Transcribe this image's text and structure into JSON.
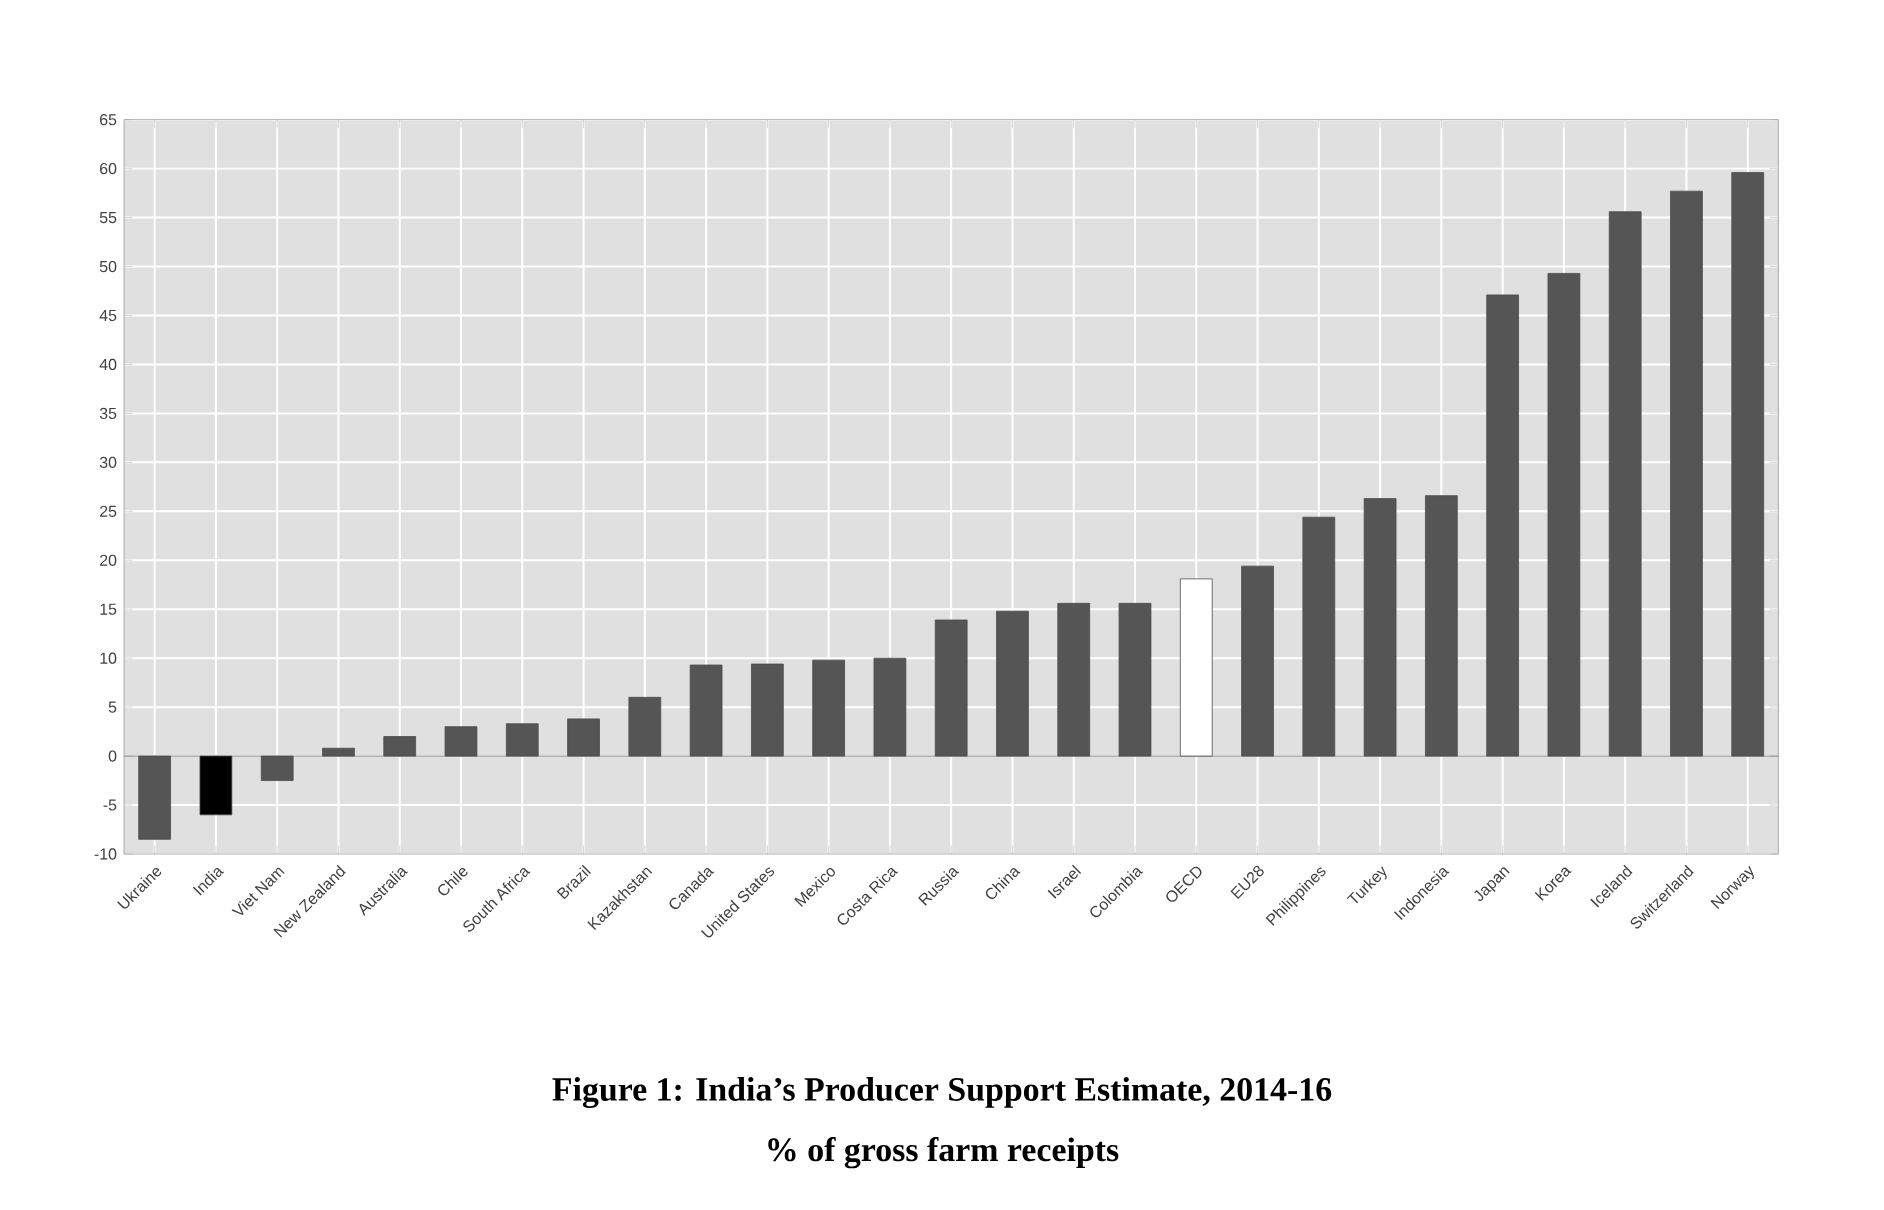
{
  "chart_data": {
    "type": "bar",
    "title": "Figure 1: India’s Producer Support Estimate, 2014-16",
    "subtitle": "% of gross farm receipts",
    "categories": [
      "Ukraine",
      "India",
      "Viet Nam",
      "New Zealand",
      "Australia",
      "Chile",
      "South Africa",
      "Brazil",
      "Kazakhstan",
      "Canada",
      "United States",
      "Mexico",
      "Costa Rica",
      "Russia",
      "China",
      "Israel",
      "Colombia",
      "OECD",
      "EU28",
      "Philippines",
      "Turkey",
      "Indonesia",
      "Japan",
      "Korea",
      "Iceland",
      "Switzerland",
      "Norway"
    ],
    "values": [
      -8.5,
      -6,
      -2.5,
      0.8,
      2,
      3,
      3.3,
      3.8,
      6,
      9.3,
      9.4,
      9.8,
      10,
      13.9,
      14.8,
      15.6,
      15.6,
      18.1,
      19.4,
      24.4,
      26.3,
      26.6,
      47.1,
      49.3,
      55.6,
      57.7,
      59.6
    ],
    "colors": [
      "#555555",
      "#000000",
      "#555555",
      "#555555",
      "#555555",
      "#555555",
      "#555555",
      "#555555",
      "#555555",
      "#555555",
      "#555555",
      "#555555",
      "#555555",
      "#555555",
      "#555555",
      "#555555",
      "#555555",
      "#ffffff",
      "#555555",
      "#555555",
      "#555555",
      "#555555",
      "#555555",
      "#555555",
      "#555555",
      "#555555",
      "#555555"
    ],
    "ylim": [
      -10,
      65
    ],
    "yticks": [
      -10,
      -5,
      0,
      5,
      10,
      15,
      20,
      25,
      30,
      35,
      40,
      45,
      50,
      55,
      60,
      65
    ],
    "grid": true
  }
}
